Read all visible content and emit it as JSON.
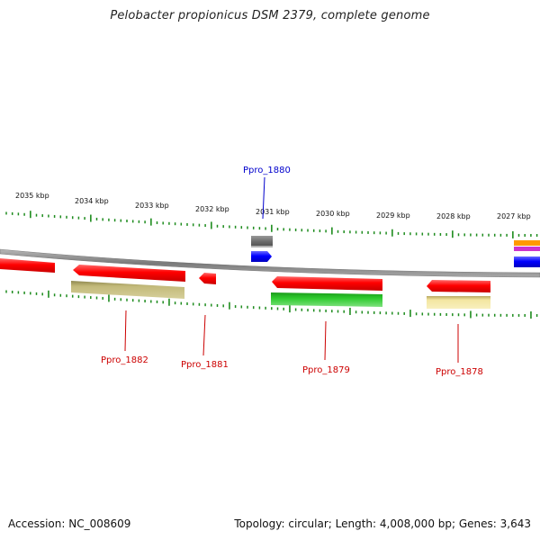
{
  "title": "Pelobacter propionicus DSM 2379, complete genome",
  "footer": {
    "accession": "Accession: NC_008609",
    "summary": "Topology: circular; Length: 4,008,000 bp; Genes: 3,643"
  },
  "colors": {
    "backbone": "#8a8a8a",
    "tick": "#1e8c1e",
    "red": "#ff0000",
    "gray": "#6e6e6e",
    "blue": "#0000ff",
    "olive": "#c2b97a",
    "green": "#2ecc2e",
    "pale_yellow": "#f3e6a0",
    "orange": "#ff9900",
    "magenta": "#cc33cc",
    "red_label": "#cc0000",
    "blue_label": "#0000cc"
  },
  "scale_labels": [
    {
      "text": "2035 kbp"
    },
    {
      "text": "2034 kbp"
    },
    {
      "text": "2033 kbp"
    },
    {
      "text": "2032 kbp"
    },
    {
      "text": "2031 kbp"
    },
    {
      "text": "2030 kbp"
    },
    {
      "text": "2029 kbp"
    },
    {
      "text": "2028 kbp"
    },
    {
      "text": "2027 kbp"
    }
  ],
  "gene_labels": [
    {
      "id": "Ppro_1880",
      "text": "Ppro_1880",
      "color": "blue_label"
    },
    {
      "id": "Ppro_1882",
      "text": "Ppro_1882",
      "color": "red_label"
    },
    {
      "id": "Ppro_1881",
      "text": "Ppro_1881",
      "color": "red_label"
    },
    {
      "id": "Ppro_1879",
      "text": "Ppro_1879",
      "color": "red_label"
    },
    {
      "id": "Ppro_1878",
      "text": "Ppro_1878",
      "color": "red_label"
    }
  ]
}
